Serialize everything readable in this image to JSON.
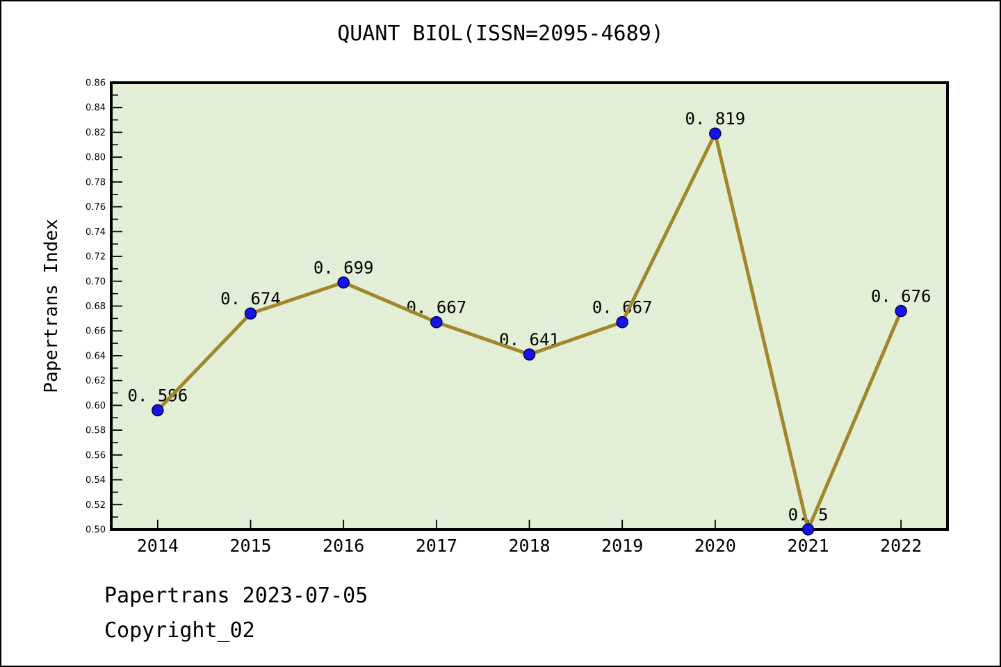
{
  "page": {
    "background": "#ffffff",
    "border_color": "#000000"
  },
  "chart_data": {
    "type": "line",
    "title": "QUANT BIOL(ISSN=2095-4689)",
    "xlabel": "",
    "ylabel": "Papertrans Index",
    "categories": [
      "2014",
      "2015",
      "2016",
      "2017",
      "2018",
      "2019",
      "2020",
      "2021",
      "2022"
    ],
    "x_positions": [
      2014,
      2015,
      2016,
      2017,
      2018,
      2019,
      2020,
      2021,
      2022
    ],
    "series": [
      {
        "name": "Papertrans Index",
        "values": [
          0.596,
          0.674,
          0.699,
          0.667,
          0.641,
          0.667,
          0.819,
          0.5,
          0.676
        ]
      }
    ],
    "point_labels": [
      "0. 596",
      "0. 674",
      "0. 699",
      "0. 667",
      "0. 641",
      "0. 667",
      "0. 819",
      "0. 5",
      "0. 676"
    ],
    "xlim": [
      2013.5,
      2022.5
    ],
    "ylim": [
      0.5,
      0.86
    ],
    "y_tick_labels": [
      "0.50",
      "0.52",
      "0.54",
      "0.56",
      "0.58",
      "0.60",
      "0.62",
      "0.64",
      "0.66",
      "0.68",
      "0.70",
      "0.72",
      "0.74",
      "0.76",
      "0.78",
      "0.80",
      "0.82",
      "0.84",
      "0.86"
    ],
    "y_minor_step": 0.01,
    "grid": false,
    "legend_position": "none",
    "colors": {
      "line": "#a0872b",
      "marker_fill": "#1515e8",
      "marker_edge": "#000050",
      "plot_bg": "#e3eed6",
      "text": "#000000"
    }
  },
  "footer": {
    "line1": "Papertrans 2023-07-05",
    "line2": "Copyright_02"
  }
}
